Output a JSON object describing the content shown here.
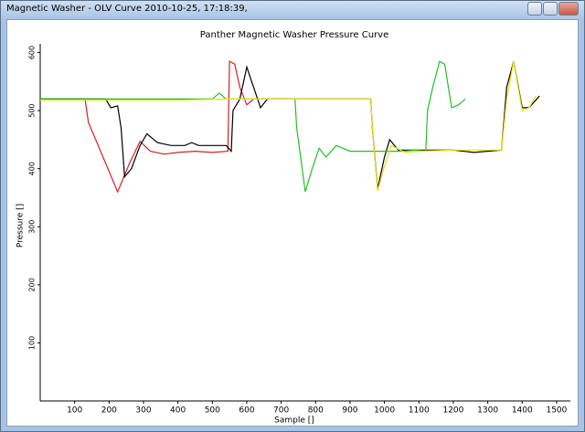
{
  "window": {
    "title": "Magnetic Washer - OLV Curve 2010-10-25, 17:18:39,"
  },
  "chart_data": {
    "type": "line",
    "title": "Panther Magnetic Washer Pressure Curve",
    "x_label": "Sample []",
    "y_label": "Pressure []",
    "xlim": [
      0,
      1540
    ],
    "xticks": [
      100,
      200,
      300,
      400,
      500,
      600,
      700,
      800,
      900,
      1000,
      1100,
      1200,
      1300,
      1400,
      1500
    ],
    "ylim": [
      0,
      615
    ],
    "yticks": [
      100,
      200,
      300,
      400,
      500,
      600
    ],
    "series": [
      {
        "color": "#d42020",
        "x": [
          0,
          130,
          140,
          225,
          260,
          290,
          320,
          360,
          400,
          450,
          500,
          545,
          550,
          565,
          580,
          600,
          620,
          700,
          720
        ],
        "values": [
          520,
          520,
          480,
          360,
          410,
          447,
          430,
          425,
          428,
          430,
          428,
          430,
          585,
          580,
          540,
          510,
          520,
          520,
          520
        ]
      },
      {
        "color": "#000000",
        "x": [
          0,
          190,
          205,
          225,
          235,
          245,
          265,
          290,
          310,
          340,
          380,
          420,
          440,
          460,
          500,
          540,
          555,
          560,
          580,
          600,
          620,
          640,
          660,
          700,
          960,
          965,
          980,
          1000,
          1015,
          1040,
          1100,
          1200,
          1260,
          1340,
          1355,
          1375,
          1400,
          1420,
          1450
        ],
        "values": [
          520,
          520,
          505,
          508,
          470,
          386,
          400,
          440,
          460,
          445,
          440,
          440,
          445,
          440,
          440,
          440,
          430,
          500,
          520,
          575,
          540,
          505,
          520,
          520,
          520,
          470,
          365,
          420,
          450,
          432,
          432,
          432,
          428,
          432,
          540,
          585,
          505,
          505,
          525
        ]
      },
      {
        "color": "#22c022",
        "x": [
          0,
          500,
          520,
          540,
          740,
          745,
          770,
          790,
          810,
          830,
          860,
          900,
          950,
          1000,
          1050,
          1090,
          1120,
          1125,
          1140,
          1160,
          1175,
          1195,
          1215,
          1235
        ],
        "values": [
          520,
          520,
          530,
          520,
          520,
          470,
          360,
          400,
          435,
          420,
          440,
          430,
          430,
          430,
          430,
          432,
          430,
          500,
          540,
          585,
          580,
          505,
          510,
          520
        ]
      },
      {
        "color": "#e8e010",
        "x": [
          0,
          400,
          540,
          700,
          960,
          965,
          980,
          1000,
          1020,
          1060,
          1100,
          1200,
          1340,
          1355,
          1375,
          1400,
          1420,
          1440
        ],
        "values": [
          518,
          518,
          520,
          520,
          520,
          470,
          362,
          405,
          440,
          428,
          430,
          432,
          432,
          520,
          585,
          500,
          505,
          525
        ]
      }
    ]
  }
}
